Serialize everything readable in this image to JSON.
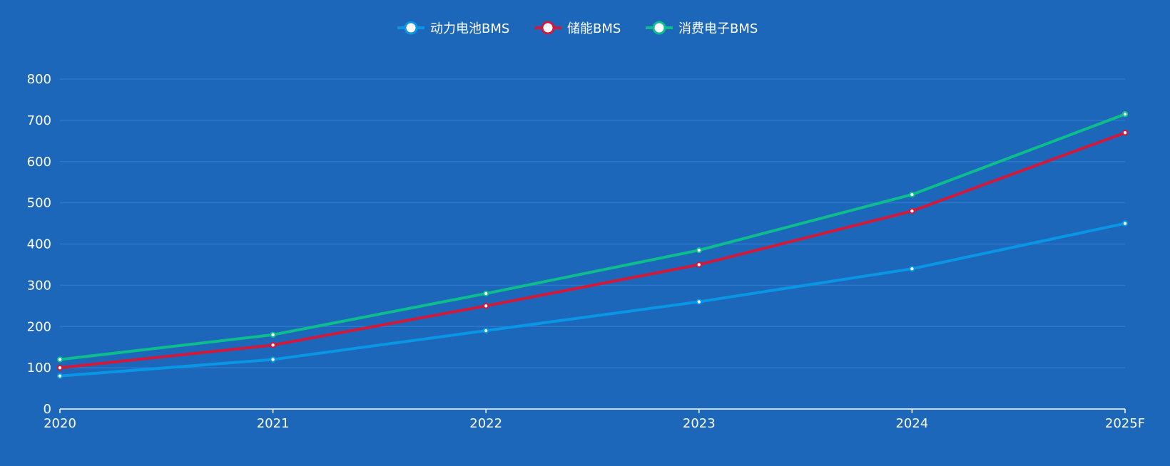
{
  "chart_data": {
    "type": "line",
    "title": "",
    "xlabel": "",
    "ylabel": "",
    "categories": [
      "2020",
      "2021",
      "2022",
      "2023",
      "2024",
      "2025F"
    ],
    "ylim": [
      0,
      800
    ],
    "yticks": [
      0,
      100,
      200,
      300,
      400,
      500,
      600,
      700,
      800
    ],
    "grid": true,
    "legend_position": "top-center",
    "series": [
      {
        "name": "动力电池BMS",
        "color": "#0a96e6",
        "values": [
          80,
          120,
          190,
          260,
          340,
          450
        ]
      },
      {
        "name": "储能BMS",
        "color": "#d3183a",
        "values": [
          100,
          155,
          250,
          350,
          480,
          670
        ]
      },
      {
        "name": "消费电子BMS",
        "color": "#0dbd8c",
        "values": [
          120,
          180,
          280,
          385,
          520,
          715
        ]
      }
    ]
  },
  "colors": {
    "background": "#1c67b9",
    "grid": "#2a78cc",
    "axis": "#ffffff",
    "text": "#ffffff"
  }
}
